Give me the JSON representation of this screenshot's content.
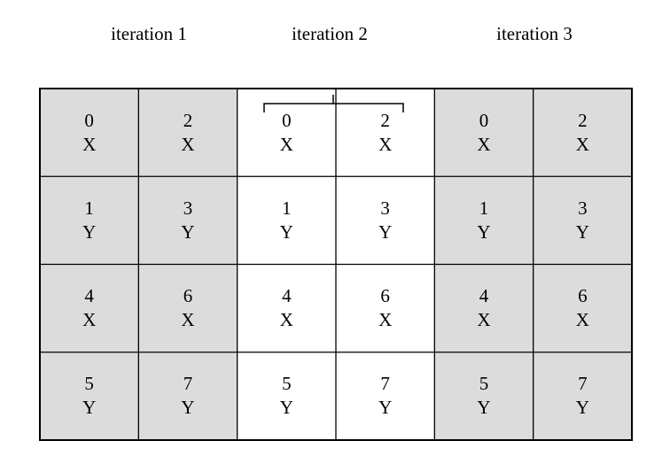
{
  "iterations": [
    {
      "label": "iteration 1",
      "shaded": true
    },
    {
      "label": "iteration 2",
      "shaded": false
    },
    {
      "label": "iteration 3",
      "shaded": true
    }
  ],
  "rows": [
    [
      {
        "num": "0",
        "letter": "X"
      },
      {
        "num": "2",
        "letter": "X"
      }
    ],
    [
      {
        "num": "1",
        "letter": "Y"
      },
      {
        "num": "3",
        "letter": "Y"
      }
    ],
    [
      {
        "num": "4",
        "letter": "X"
      },
      {
        "num": "6",
        "letter": "X"
      }
    ],
    [
      {
        "num": "5",
        "letter": "Y"
      },
      {
        "num": "7",
        "letter": "Y"
      }
    ]
  ],
  "colors": {
    "shaded": "#dcdcdc",
    "line": "#000000"
  }
}
